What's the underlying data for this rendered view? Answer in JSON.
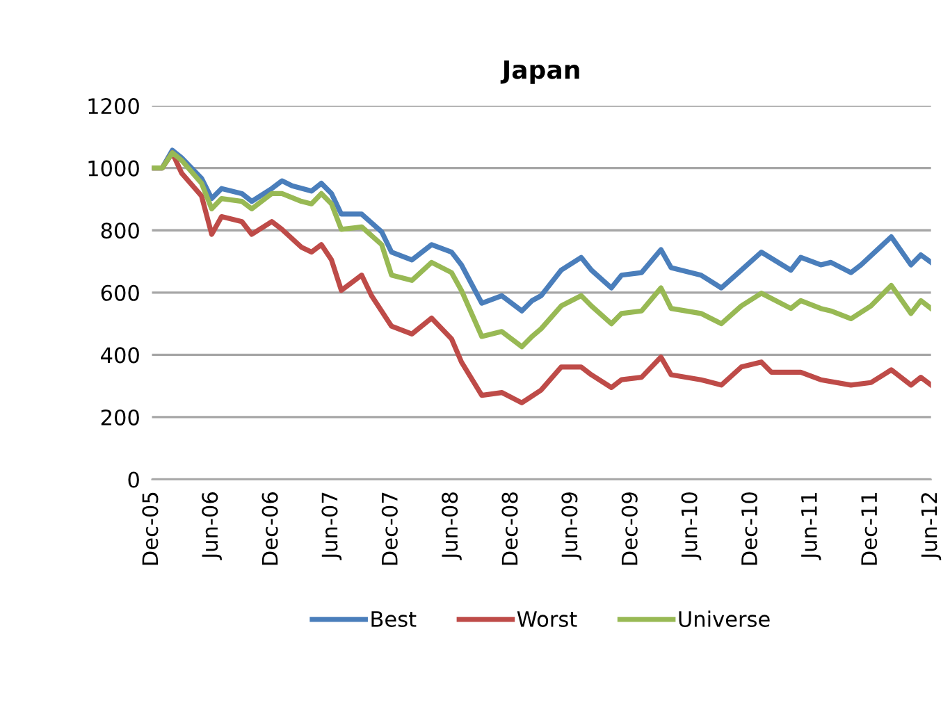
{
  "chart_data": {
    "type": "line",
    "title": "Japan",
    "xlim": [
      "2005-12",
      "2012-06"
    ],
    "xticks": [
      {
        "value": "2005-12",
        "label": "Dec-05"
      },
      {
        "value": "2006-06",
        "label": "Jun-06"
      },
      {
        "value": "2006-12",
        "label": "Dec-06"
      },
      {
        "value": "2007-06",
        "label": "Jun-07"
      },
      {
        "value": "2007-12",
        "label": "Dec-07"
      },
      {
        "value": "2008-06",
        "label": "Jun-08"
      },
      {
        "value": "2008-12",
        "label": "Dec-08"
      },
      {
        "value": "2009-06",
        "label": "Jun-09"
      },
      {
        "value": "2009-12",
        "label": "Dec-09"
      },
      {
        "value": "2010-06",
        "label": "Jun-10"
      },
      {
        "value": "2010-12",
        "label": "Dec-10"
      },
      {
        "value": "2011-06",
        "label": "Jun-11"
      },
      {
        "value": "2011-12",
        "label": "Dec-11"
      },
      {
        "value": "2012-06",
        "label": "Jun-12"
      }
    ],
    "ylim": [
      0,
      1200
    ],
    "yticks": [
      0,
      200,
      400,
      600,
      800,
      1000,
      1200
    ],
    "grid": "y",
    "legend": "bottom",
    "marker": "none",
    "line_style": "solid",
    "series": [
      {
        "name": "Best",
        "color": "#4a7ebb",
        "x": [
          "2005-12",
          "2006-01",
          "2006-02",
          "2006-03",
          "2006-05",
          "2006-06",
          "2006-07",
          "2006-09",
          "2006-10",
          "2006-12",
          "2007-01",
          "2007-02",
          "2007-04",
          "2007-05",
          "2007-06",
          "2007-07",
          "2007-09",
          "2007-11",
          "2007-12",
          "2008-02",
          "2008-04",
          "2008-06",
          "2008-07",
          "2008-09",
          "2008-11",
          "2009-01",
          "2009-02",
          "2009-03",
          "2009-05",
          "2009-07",
          "2009-08",
          "2009-10",
          "2009-11",
          "2010-01",
          "2010-03",
          "2010-04",
          "2010-07",
          "2010-09",
          "2010-11",
          "2011-01",
          "2011-04",
          "2011-05",
          "2011-07",
          "2011-08",
          "2011-10",
          "2011-11",
          "2012-02",
          "2012-04",
          "2012-05",
          "2012-06"
        ],
        "values": [
          1000,
          1000,
          1057,
          1033,
          967,
          902,
          934,
          918,
          893,
          934,
          959,
          943,
          926,
          951,
          918,
          852,
          852,
          795,
          730,
          705,
          754,
          730,
          689,
          566,
          590,
          541,
          574,
          590,
          672,
          713,
          672,
          615,
          656,
          664,
          738,
          680,
          656,
          615,
          672,
          730,
          672,
          713,
          689,
          697,
          664,
          689,
          779,
          689,
          721,
          697
        ]
      },
      {
        "name": "Worst",
        "color": "#be4b48",
        "x": [
          "2005-12",
          "2006-01",
          "2006-02",
          "2006-03",
          "2006-05",
          "2006-06",
          "2006-07",
          "2006-09",
          "2006-10",
          "2006-12",
          "2007-01",
          "2007-03",
          "2007-04",
          "2007-05",
          "2007-06",
          "2007-07",
          "2007-09",
          "2007-10",
          "2007-12",
          "2008-02",
          "2008-04",
          "2008-06",
          "2008-07",
          "2008-09",
          "2008-11",
          "2009-01",
          "2009-03",
          "2009-05",
          "2009-07",
          "2009-08",
          "2009-10",
          "2009-11",
          "2010-01",
          "2010-03",
          "2010-04",
          "2010-07",
          "2010-09",
          "2010-11",
          "2011-01",
          "2011-02",
          "2011-05",
          "2011-07",
          "2011-10",
          "2011-12",
          "2012-02",
          "2012-04",
          "2012-05",
          "2012-06"
        ],
        "values": [
          1000,
          1000,
          1049,
          984,
          910,
          787,
          844,
          828,
          787,
          828,
          803,
          746,
          730,
          754,
          705,
          607,
          656,
          590,
          492,
          467,
          518,
          451,
          377,
          270,
          279,
          246,
          287,
          361,
          361,
          336,
          295,
          320,
          328,
          393,
          336,
          320,
          303,
          361,
          377,
          344,
          344,
          320,
          303,
          311,
          352,
          303,
          328,
          303
        ]
      },
      {
        "name": "Universe",
        "color": "#98b954",
        "x": [
          "2005-12",
          "2006-01",
          "2006-02",
          "2006-03",
          "2006-05",
          "2006-06",
          "2006-07",
          "2006-09",
          "2006-10",
          "2006-12",
          "2007-01",
          "2007-03",
          "2007-04",
          "2007-05",
          "2007-06",
          "2007-07",
          "2007-09",
          "2007-11",
          "2007-12",
          "2008-02",
          "2008-04",
          "2008-06",
          "2008-07",
          "2008-09",
          "2008-11",
          "2009-01",
          "2009-02",
          "2009-03",
          "2009-05",
          "2009-07",
          "2009-08",
          "2009-10",
          "2009-11",
          "2010-01",
          "2010-03",
          "2010-04",
          "2010-07",
          "2010-09",
          "2010-11",
          "2011-01",
          "2011-04",
          "2011-05",
          "2011-07",
          "2011-08",
          "2011-10",
          "2011-12",
          "2012-02",
          "2012-04",
          "2012-05",
          "2012-06"
        ],
        "values": [
          1000,
          1000,
          1049,
          1025,
          951,
          869,
          902,
          893,
          869,
          918,
          918,
          893,
          885,
          918,
          885,
          803,
          811,
          754,
          656,
          639,
          697,
          664,
          607,
          459,
          475,
          426,
          459,
          484,
          557,
          590,
          557,
          500,
          533,
          541,
          615,
          549,
          533,
          500,
          557,
          598,
          549,
          574,
          549,
          541,
          516,
          557,
          623,
          533,
          574,
          549
        ]
      }
    ]
  }
}
